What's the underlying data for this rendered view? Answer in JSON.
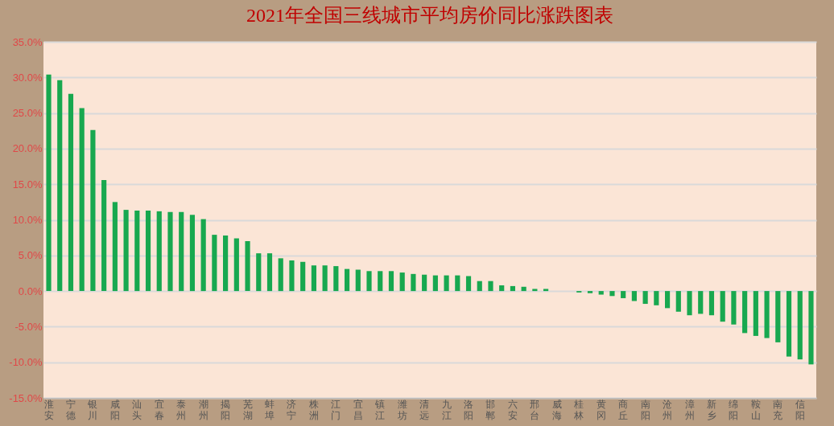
{
  "chart_data": {
    "type": "bar",
    "title": "2021年全国三线城市平均房价同比涨跌图表",
    "categories": [
      "淮安",
      null,
      "宁德",
      null,
      "银川",
      null,
      "咸阳",
      null,
      "汕头",
      null,
      "宜春",
      null,
      "泰州",
      null,
      "潮州",
      null,
      "揭阳",
      null,
      "芜湖",
      null,
      "蚌埠",
      null,
      "济宁",
      null,
      "株洲",
      null,
      "江门",
      null,
      "宜昌",
      null,
      "镇江",
      null,
      "潍坊",
      null,
      "清远",
      null,
      "九江",
      null,
      "洛阳",
      null,
      "邯郸",
      null,
      "六安",
      null,
      "邢台",
      null,
      "威海",
      null,
      "桂林",
      null,
      "黄冈",
      null,
      "商丘",
      null,
      "南阳",
      null,
      "沧州",
      null,
      "漳州",
      null,
      "新乡",
      null,
      "绵阳",
      null,
      "鞍山",
      null,
      "南充",
      null,
      "信阳",
      null
    ],
    "values": [
      30.4,
      29.6,
      27.7,
      25.7,
      22.6,
      15.6,
      12.5,
      11.4,
      11.3,
      11.3,
      11.2,
      11.1,
      11.1,
      10.7,
      10.1,
      7.9,
      7.8,
      7.4,
      7.0,
      5.3,
      5.3,
      4.6,
      4.3,
      4.1,
      3.6,
      3.6,
      3.5,
      3.1,
      3.0,
      2.8,
      2.8,
      2.8,
      2.6,
      2.4,
      2.3,
      2.2,
      2.2,
      2.2,
      2.1,
      1.4,
      1.4,
      0.8,
      0.7,
      0.6,
      0.3,
      0.3,
      0.0,
      0.0,
      -0.2,
      -0.3,
      -0.5,
      -0.7,
      -1.0,
      -1.4,
      -1.8,
      -2.0,
      -2.4,
      -2.9,
      -3.4,
      -3.2,
      -3.4,
      -4.3,
      -4.7,
      -5.9,
      -6.3,
      -6.6,
      -7.2,
      -9.2,
      -9.6,
      -10.3
    ],
    "color": "#18a84f",
    "ylim": [
      -15,
      35
    ],
    "yticks": [
      {
        "value": -15,
        "label": "-15.0%"
      },
      {
        "value": -10,
        "label": "-10.0%"
      },
      {
        "value": -5,
        "label": "-5.0%"
      },
      {
        "value": 0,
        "label": "0.0%"
      },
      {
        "value": 5,
        "label": "5.0%"
      },
      {
        "value": 10,
        "label": "10.0%"
      },
      {
        "value": 15,
        "label": "15.0%"
      },
      {
        "value": 20,
        "label": "20.0%"
      },
      {
        "value": 25,
        "label": "25.0%"
      },
      {
        "value": 30,
        "label": "30.0%"
      },
      {
        "value": 35,
        "label": "35.0%"
      }
    ],
    "grid": "y"
  }
}
